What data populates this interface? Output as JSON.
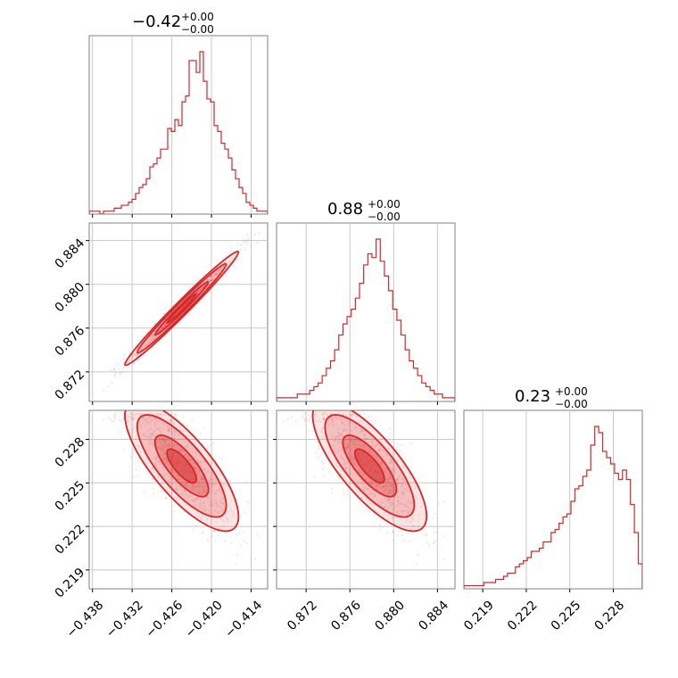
{
  "chart_data": {
    "type": "corner",
    "color": "#d62728",
    "grid": true,
    "parameters": [
      {
        "title_value": "−0.42",
        "title_plus": "+0.00",
        "title_minus": "−0.00"
      },
      {
        "title_value": "0.88",
        "title_plus": "+0.00",
        "title_minus": "−0.00"
      },
      {
        "title_value": "0.23",
        "title_plus": "+0.00",
        "title_minus": "−0.00"
      }
    ],
    "axes": {
      "p0": {
        "range": [
          -0.4385,
          -0.4115
        ],
        "ticks": [
          "−0.438",
          "−0.432",
          "−0.426",
          "−0.420",
          "−0.414"
        ],
        "tick_values": [
          -0.438,
          -0.432,
          -0.426,
          -0.42,
          -0.414
        ]
      },
      "p1": {
        "range": [
          0.8693,
          0.8856
        ],
        "ticks": [
          "0.872",
          "0.876",
          "0.880",
          "0.884"
        ],
        "tick_values": [
          0.872,
          0.876,
          0.88,
          0.884
        ]
      },
      "p2": {
        "range": [
          0.2177,
          0.23
        ],
        "ticks": [
          "0.219",
          "0.222",
          "0.225",
          "0.228"
        ],
        "tick_values": [
          0.219,
          0.222,
          0.225,
          0.228
        ]
      }
    },
    "histograms": [
      {
        "param": 0,
        "bins": [
          -0.4385,
          -0.4115
        ],
        "counts": [
          1,
          1,
          1,
          0,
          1,
          1,
          1,
          2,
          2,
          3,
          3,
          4,
          5,
          7,
          9,
          10,
          12,
          16,
          17,
          19,
          22,
          22,
          29,
          28,
          32,
          30,
          38,
          40,
          52,
          52,
          48,
          55,
          45,
          39,
          38,
          30,
          28,
          24,
          22,
          19,
          15,
          12,
          9,
          7,
          4,
          3,
          2,
          1,
          1,
          1
        ]
      },
      {
        "param": 1,
        "bins": [
          0.8693,
          0.8856
        ],
        "counts": [
          1,
          1,
          1,
          1,
          1,
          2,
          2,
          2,
          3,
          4,
          5,
          7,
          9,
          11,
          14,
          18,
          21,
          23,
          25,
          28,
          32,
          37,
          40,
          39,
          44,
          38,
          34,
          30,
          25,
          22,
          18,
          14,
          11,
          9,
          7,
          5,
          4,
          3,
          2,
          2,
          1,
          1,
          1
        ]
      },
      {
        "param": 2,
        "bins": [
          0.2177,
          0.23
        ],
        "counts": [
          1,
          1,
          1,
          1,
          1,
          2,
          2,
          2,
          3,
          3,
          4,
          5,
          5,
          7,
          8,
          9,
          10,
          12,
          12,
          13,
          15,
          15,
          18,
          19,
          21,
          23,
          24,
          28,
          32,
          33,
          36,
          38,
          46,
          52,
          50,
          44,
          42,
          40,
          37,
          35,
          38,
          35,
          27,
          18,
          8
        ]
      }
    ],
    "pairs": [
      {
        "x_param": 0,
        "y_param": 1,
        "relation": "strong positive correlation"
      },
      {
        "x_param": 0,
        "y_param": 2,
        "relation": "negative correlation"
      },
      {
        "x_param": 1,
        "y_param": 2,
        "relation": "negative correlation"
      }
    ]
  }
}
